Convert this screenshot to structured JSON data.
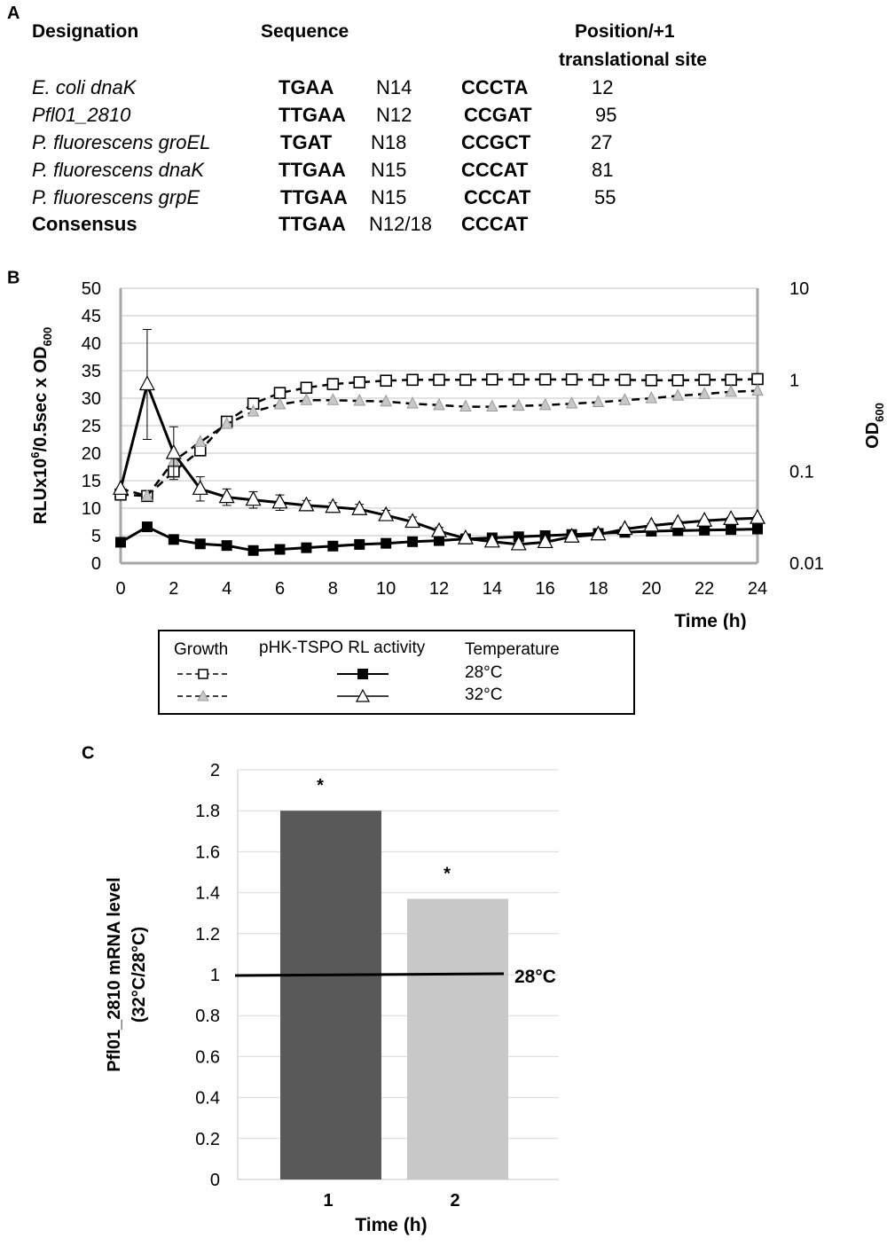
{
  "panel_a": {
    "letter": "A",
    "headers": {
      "designation": "Designation",
      "sequence": "Sequence",
      "position_line1": "Position/+1",
      "position_line2": "translational site"
    },
    "rows": [
      {
        "designation": "E. coli dnaK",
        "box1": "TGAA",
        "spacer": "N14",
        "box2": "CCCTA",
        "position": "12"
      },
      {
        "designation": "Pfl01_2810",
        "box1": "TTGAA",
        "spacer": "N12",
        "box2": "CCGAT",
        "position": "95"
      },
      {
        "designation": "P. fluorescens groEL",
        "box1": "TGAT",
        "spacer": "N18",
        "box2": "CCGCT",
        "position": "27"
      },
      {
        "designation": "P. fluorescens dnaK",
        "box1": "TTGAA",
        "spacer": "N15",
        "box2": "CCCAT",
        "position": "81"
      },
      {
        "designation": "P. fluorescens grpE",
        "box1": "TTGAA",
        "spacer": "N15",
        "box2": "CCCAT",
        "position": "55"
      },
      {
        "designation": "Consensus",
        "box1": "TTGAA",
        "spacer": "N12/18",
        "box2": "CCCAT",
        "position": ""
      }
    ]
  },
  "legend_b": {
    "growth_header": "Growth",
    "activity_header": "pHK-TSPO RL activity",
    "temperature_header": "Temperature",
    "temp_28": "28°C",
    "temp_32": "32°C"
  },
  "colors": {
    "axis_gray": "#a6a6a6",
    "grid": "#d9d9d9",
    "bar_dark": "#595959",
    "bar_light": "#c8c8c8",
    "marker_light": "#c8c8c8"
  },
  "chart_data": [
    {
      "id": "B",
      "type": "line",
      "panel_letter": "B",
      "xlabel": "Time (h)",
      "ylabel_left": "RLUx10^6/0.5sec x OD600",
      "ylabel_right": "OD600",
      "x": [
        0,
        1,
        2,
        3,
        4,
        5,
        6,
        7,
        8,
        9,
        10,
        11,
        12,
        13,
        14,
        15,
        16,
        17,
        18,
        19,
        20,
        21,
        22,
        23,
        24
      ],
      "x_ticks": [
        "0",
        "2",
        "4",
        "6",
        "8",
        "10",
        "12",
        "14",
        "16",
        "18",
        "20",
        "22",
        "24"
      ],
      "xlim": [
        0,
        24
      ],
      "ylim_left": [
        0,
        50
      ],
      "y_ticks_left": [
        "0",
        "5",
        "10",
        "15",
        "20",
        "25",
        "30",
        "35",
        "40",
        "45",
        "50"
      ],
      "ylim_right_log": [
        0.01,
        10
      ],
      "y_ticks_right": [
        "0.01",
        "0.1",
        "1",
        "10"
      ],
      "series": [
        {
          "name": "Growth 28°C",
          "axis": "right",
          "style": "dashed",
          "marker": "open-square",
          "values": [
            0.056,
            0.054,
            0.1,
            0.17,
            0.35,
            0.55,
            0.72,
            0.82,
            0.9,
            0.94,
            0.98,
            1.0,
            1.0,
            1.0,
            1.01,
            1.01,
            1.01,
            1.01,
            1.0,
            1.0,
            0.99,
            0.99,
            1.0,
            1.0,
            1.02
          ]
        },
        {
          "name": "Growth 32°C",
          "axis": "right",
          "style": "dashed",
          "marker": "light-triangle",
          "values": [
            0.065,
            0.054,
            0.13,
            0.21,
            0.33,
            0.45,
            0.54,
            0.6,
            0.6,
            0.59,
            0.58,
            0.55,
            0.53,
            0.51,
            0.51,
            0.52,
            0.53,
            0.55,
            0.57,
            0.6,
            0.63,
            0.67,
            0.7,
            0.74,
            0.76
          ]
        },
        {
          "name": "pHK-TSPO RL activity 28°C",
          "axis": "left",
          "style": "solid",
          "marker": "filled-square",
          "values": [
            3.8,
            6.6,
            4.3,
            3.5,
            3.2,
            2.3,
            2.5,
            2.8,
            3.1,
            3.4,
            3.6,
            3.9,
            4.1,
            4.4,
            4.6,
            4.8,
            5.0,
            5.2,
            5.4,
            5.6,
            5.8,
            5.9,
            6.0,
            6.1,
            6.2
          ],
          "error": [
            0,
            0.5,
            0.3,
            0,
            0,
            0,
            0,
            0,
            0,
            0,
            0,
            0,
            0,
            0,
            0,
            0,
            0,
            0,
            0,
            0,
            0,
            0,
            0,
            0,
            0
          ]
        },
        {
          "name": "pHK-TSPO RL activity 32°C",
          "axis": "left",
          "style": "solid",
          "marker": "open-triangle",
          "values": [
            13.5,
            32.5,
            20,
            13.5,
            12,
            11.5,
            11,
            10.5,
            10.2,
            9.8,
            8.7,
            7.5,
            5.8,
            4.5,
            3.9,
            3.4,
            3.8,
            4.8,
            5.2,
            6.2,
            6.8,
            7.3,
            7.7,
            8.0,
            8.2
          ],
          "error": [
            0,
            10,
            4.8,
            2.2,
            1.5,
            1.5,
            1.4,
            0.9,
            0.8,
            0.9,
            0.9,
            0.9,
            0.7,
            0.8,
            0.6,
            0.5,
            0.5,
            0.4,
            0.4,
            0.4,
            0.4,
            0.4,
            0.3,
            0.3,
            0.3
          ]
        }
      ]
    },
    {
      "id": "C",
      "type": "bar",
      "panel_letter": "C",
      "categories": [
        "1",
        "2"
      ],
      "values": [
        1.8,
        1.37
      ],
      "significance": [
        "*",
        "*"
      ],
      "xlabel": "Time (h)",
      "ylabel_line1": "Pfl01_2810 mRNA level",
      "ylabel_line2": "(32°C/28°C)",
      "ylim": [
        0,
        2
      ],
      "y_ticks": [
        "0",
        "0.2",
        "0.4",
        "0.6",
        "0.8",
        "1",
        "1.2",
        "1.4",
        "1.6",
        "1.8",
        "2"
      ],
      "reference_line": {
        "value": 1,
        "label": "28°C"
      }
    }
  ]
}
